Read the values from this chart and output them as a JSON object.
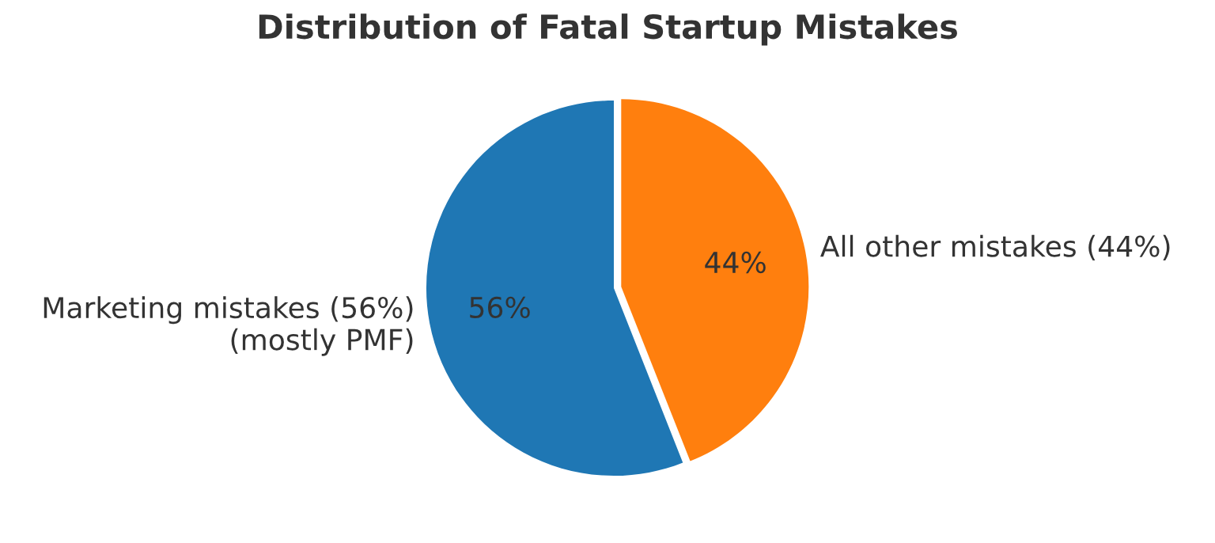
{
  "chart_data": {
    "type": "pie",
    "title": "Distribution of Fatal Startup Mistakes",
    "categories": [
      "Marketing mistakes (56%)\n(mostly PMF)",
      "All other mistakes (44%)"
    ],
    "values": [
      56,
      44
    ],
    "colors": [
      "#1f77b4",
      "#ff7f0e"
    ],
    "value_labels": [
      "56%",
      "44%"
    ]
  }
}
